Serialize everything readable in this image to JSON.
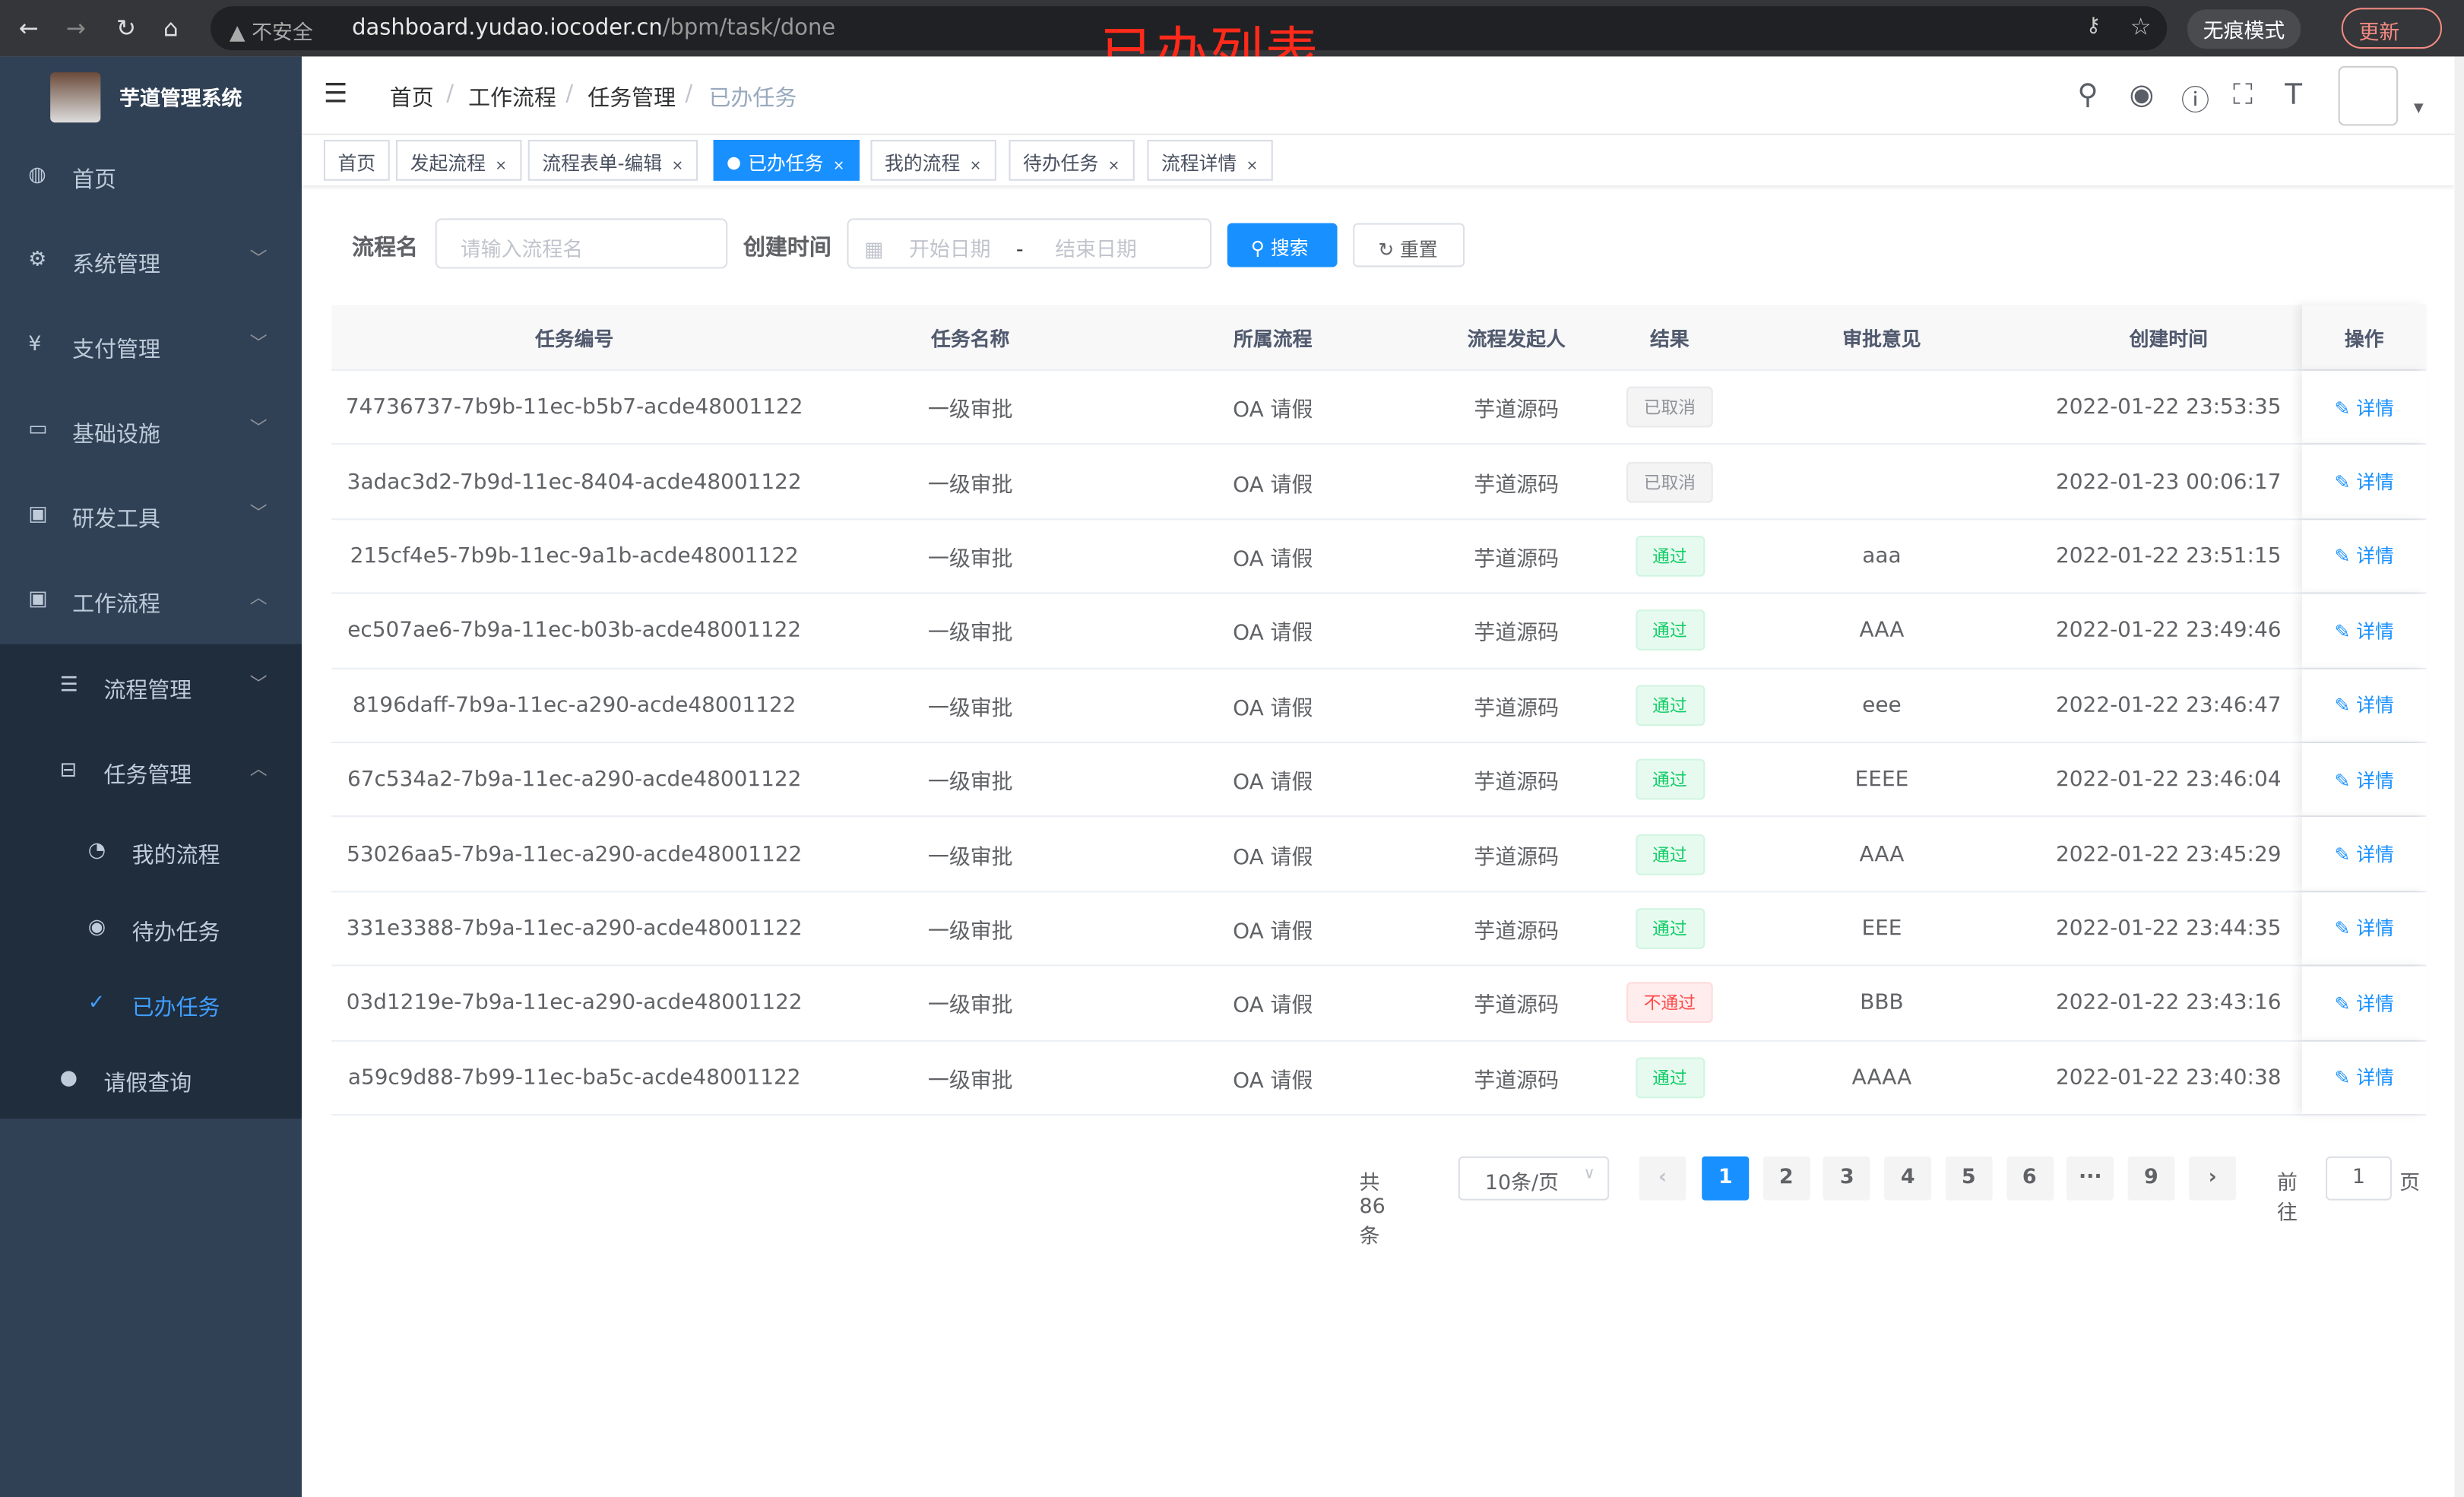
{
  "browser": {
    "insecure": "不安全",
    "url_host": "dashboard.yudao.iocoder.cn",
    "url_path": "/bpm/task/done",
    "incognito": "无痕模式",
    "update": "更新"
  },
  "overlay_title": "已办列表",
  "app": {
    "name": "芋道管理系统"
  },
  "sidebar": {
    "items": [
      {
        "label": "首页",
        "icon": "dashboard-icon"
      },
      {
        "label": "系统管理",
        "icon": "gear-icon"
      },
      {
        "label": "支付管理",
        "icon": "yen-icon"
      },
      {
        "label": "基础设施",
        "icon": "monitor-icon"
      },
      {
        "label": "研发工具",
        "icon": "toolbox-icon"
      },
      {
        "label": "工作流程",
        "icon": "toolbox-icon"
      }
    ],
    "sub": [
      {
        "label": "流程管理",
        "icon": "list-icon"
      },
      {
        "label": "任务管理",
        "icon": "tree-icon"
      },
      {
        "label": "我的流程",
        "icon": "chat-icon"
      },
      {
        "label": "待办任务",
        "icon": "eye-icon"
      },
      {
        "label": "已办任务",
        "icon": "check-icon"
      },
      {
        "label": "请假查询",
        "icon": "user-icon"
      }
    ]
  },
  "breadcrumb": [
    "首页",
    "工作流程",
    "任务管理",
    "已办任务"
  ],
  "tags": [
    "首页",
    "发起流程",
    "流程表单-编辑",
    "已办任务",
    "我的流程",
    "待办任务",
    "流程详情"
  ],
  "filters": {
    "name_label": "流程名",
    "name_placeholder": "请输入流程名",
    "time_label": "创建时间",
    "start_placeholder": "开始日期",
    "end_placeholder": "结束日期",
    "range_sep": "-",
    "search": "搜索",
    "reset": "重置"
  },
  "table": {
    "columns": [
      "任务编号",
      "任务名称",
      "所属流程",
      "流程发起人",
      "结果",
      "审批意见",
      "创建时间",
      "操作"
    ],
    "rows": [
      [
        "74736737-7b9b-11ec-b5b7-acde48001122",
        "一级审批",
        "OA 请假",
        "芋道源码",
        "已取消",
        "",
        "2022-01-22 23:53:35",
        "详情"
      ],
      [
        "3adac3d2-7b9d-11ec-8404-acde48001122",
        "一级审批",
        "OA 请假",
        "芋道源码",
        "已取消",
        "",
        "2022-01-23 00:06:17",
        "详情"
      ],
      [
        "215cf4e5-7b9b-11ec-9a1b-acde48001122",
        "一级审批",
        "OA 请假",
        "芋道源码",
        "通过",
        "aaa",
        "2022-01-22 23:51:15",
        "详情"
      ],
      [
        "ec507ae6-7b9a-11ec-b03b-acde48001122",
        "一级审批",
        "OA 请假",
        "芋道源码",
        "通过",
        "AAA",
        "2022-01-22 23:49:46",
        "详情"
      ],
      [
        "8196daff-7b9a-11ec-a290-acde48001122",
        "一级审批",
        "OA 请假",
        "芋道源码",
        "通过",
        "eee",
        "2022-01-22 23:46:47",
        "详情"
      ],
      [
        "67c534a2-7b9a-11ec-a290-acde48001122",
        "一级审批",
        "OA 请假",
        "芋道源码",
        "通过",
        "EEEE",
        "2022-01-22 23:46:04",
        "详情"
      ],
      [
        "53026aa5-7b9a-11ec-a290-acde48001122",
        "一级审批",
        "OA 请假",
        "芋道源码",
        "通过",
        "AAA",
        "2022-01-22 23:45:29",
        "详情"
      ],
      [
        "331e3388-7b9a-11ec-a290-acde48001122",
        "一级审批",
        "OA 请假",
        "芋道源码",
        "通过",
        "EEE",
        "2022-01-22 23:44:35",
        "详情"
      ],
      [
        "03d1219e-7b9a-11ec-a290-acde48001122",
        "一级审批",
        "OA 请假",
        "芋道源码",
        "不通过",
        "BBB",
        "2022-01-22 23:43:16",
        "详情"
      ],
      [
        "a59c9d88-7b99-11ec-ba5c-acde48001122",
        "一级审批",
        "OA 请假",
        "芋道源码",
        "通过",
        "AAAA",
        "2022-01-22 23:40:38",
        "详情"
      ]
    ]
  },
  "pagination": {
    "total": "共 86 条",
    "page_size": "10条/页",
    "pages": [
      "1",
      "2",
      "3",
      "4",
      "5",
      "6",
      "···",
      "9"
    ],
    "current": "1",
    "goto_label": "前往",
    "goto_value": "1",
    "goto_unit": "页"
  },
  "colors": {
    "primary": "#1890ff",
    "sidebar": "#304156",
    "submenu": "#1f2d3d",
    "active_menu": "#409eff",
    "overlay": "#ff2a1a"
  }
}
